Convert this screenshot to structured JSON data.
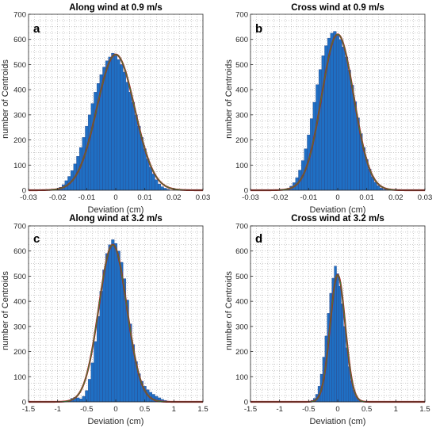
{
  "colors": {
    "bar_fill": "#1f6fc4",
    "bar_edge": "#2b4a8a",
    "fit_outer": "#b22222",
    "fit_inner": "#2e8b3a",
    "grid": "#9a9a9a"
  },
  "chart_data": [
    {
      "type": "bar",
      "panel_letter": "a",
      "title": "Along wind at 0.9 m/s",
      "xlabel": "Deviation (cm)",
      "ylabel": "number of Centroids",
      "xlim": [
        -0.03,
        0.03
      ],
      "ylim": [
        0,
        700
      ],
      "xticks": [
        -0.03,
        -0.02,
        -0.01,
        0,
        0.01,
        0.02,
        0.03
      ],
      "xtick_labels": [
        "-0.03",
        "-0.02",
        "-0.01",
        "0",
        "0.01",
        "0.02",
        "0.03"
      ],
      "yticks": [
        0,
        100,
        200,
        300,
        400,
        500,
        600,
        700
      ],
      "grid": true,
      "bin_start": -0.0205,
      "bin_width": 0.001,
      "values": [
        5,
        12,
        22,
        38,
        55,
        78,
        105,
        135,
        170,
        210,
        255,
        300,
        345,
        390,
        425,
        460,
        490,
        515,
        530,
        545,
        535,
        520,
        500,
        470,
        430,
        390,
        350,
        300,
        255,
        210,
        165,
        125,
        92,
        65,
        42,
        25,
        14,
        8,
        4
      ],
      "fit": {
        "mu": 0.0,
        "sigma": 0.0065,
        "peak": 540
      }
    },
    {
      "type": "bar",
      "panel_letter": "b",
      "title": "Cross wind at 0.9 m/s",
      "xlabel": "Deviation (cm)",
      "ylabel": "number of Centroids",
      "xlim": [
        -0.03,
        0.03
      ],
      "ylim": [
        0,
        700
      ],
      "xticks": [
        -0.03,
        -0.02,
        -0.01,
        0,
        0.01,
        0.02,
        0.03
      ],
      "xtick_labels": [
        "-0.03",
        "-0.02",
        "-0.01",
        "0",
        "0.01",
        "0.02",
        "0.03"
      ],
      "yticks": [
        0,
        100,
        200,
        300,
        400,
        500,
        600,
        700
      ],
      "grid": true,
      "bin_start": -0.0185,
      "bin_width": 0.001,
      "values": [
        3,
        8,
        16,
        30,
        50,
        80,
        118,
        165,
        220,
        285,
        350,
        420,
        480,
        535,
        575,
        605,
        625,
        632,
        620,
        600,
        570,
        530,
        478,
        418,
        352,
        288,
        225,
        170,
        122,
        84,
        54,
        32,
        18,
        9,
        4,
        2,
        1
      ],
      "fit": {
        "mu": 0.0,
        "sigma": 0.0055,
        "peak": 620
      }
    },
    {
      "type": "bar",
      "panel_letter": "c",
      "title": "Along wind at 3.2 m/s",
      "xlabel": "Deviation (cm)",
      "ylabel": "number of Centroids",
      "xlim": [
        -1.5,
        1.5
      ],
      "ylim": [
        0,
        700
      ],
      "xticks": [
        -1.5,
        -1,
        -0.5,
        0,
        0.5,
        1,
        1.5
      ],
      "xtick_labels": [
        "-1.5",
        "-1",
        "-0.5",
        "0",
        "0.5",
        "1",
        "1.5"
      ],
      "yticks": [
        0,
        100,
        200,
        300,
        400,
        500,
        600,
        700
      ],
      "grid": true,
      "bin_start": -0.825,
      "bin_width": 0.05,
      "values": [
        6,
        14,
        18,
        16,
        12,
        22,
        45,
        90,
        155,
        240,
        340,
        440,
        525,
        590,
        625,
        645,
        630,
        600,
        555,
        490,
        405,
        310,
        228,
        160,
        112,
        82,
        62,
        48,
        38,
        30,
        22,
        16,
        10,
        6,
        3,
        2
      ],
      "fit": {
        "mu": -0.05,
        "sigma": 0.24,
        "peak": 625
      }
    },
    {
      "type": "bar",
      "panel_letter": "d",
      "title": "Cross wind at 3.2 m/s",
      "xlabel": "Deviation (cm)",
      "ylabel": "number of Centroids",
      "xlim": [
        -1.5,
        1.5
      ],
      "ylim": [
        0,
        700
      ],
      "xticks": [
        -1.5,
        -1,
        -0.5,
        0,
        0.5,
        1,
        1.5
      ],
      "xtick_labels": [
        "-1.5",
        "-1",
        "-0.5",
        "0",
        "0.5",
        "1",
        "1.5"
      ],
      "yticks": [
        0,
        100,
        200,
        300,
        400,
        500,
        600,
        700
      ],
      "grid": true,
      "bin_start": -0.5,
      "bin_width": 0.04,
      "values": [
        2,
        6,
        14,
        30,
        62,
        110,
        178,
        262,
        352,
        432,
        492,
        540,
        510,
        460,
        390,
        300,
        215,
        140,
        84,
        46,
        22,
        10,
        4,
        2,
        1
      ],
      "fit": {
        "mu": 0.0,
        "sigma": 0.13,
        "peak": 505
      }
    }
  ]
}
